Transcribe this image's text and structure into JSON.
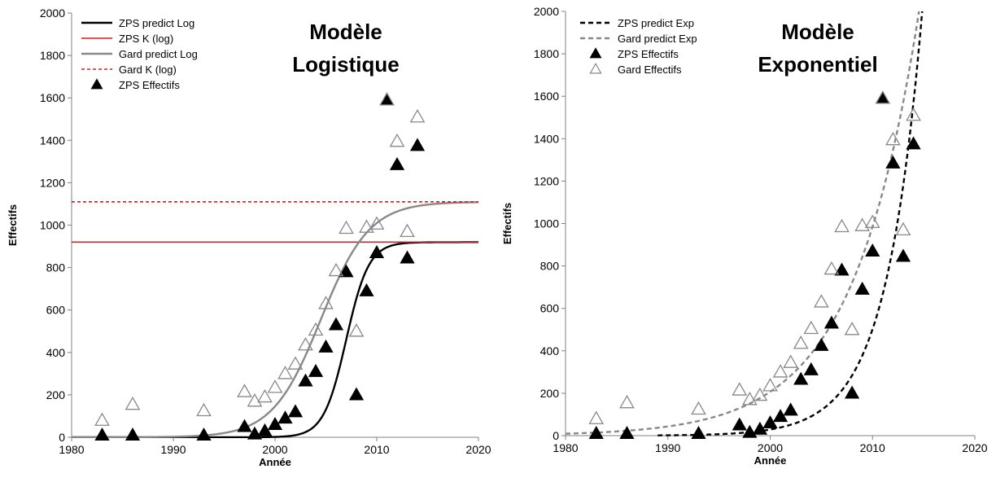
{
  "chart_data": [
    {
      "type": "scatter",
      "title_lines": [
        "Modèle",
        "Logistique"
      ],
      "xlabel": "Année",
      "ylabel": "Effectifs",
      "xlim": [
        1980,
        2020
      ],
      "ylim": [
        0,
        2000
      ],
      "xticks": [
        1980,
        1990,
        2000,
        2010,
        2020
      ],
      "yticks": [
        0,
        200,
        400,
        600,
        800,
        1000,
        1200,
        1400,
        1600,
        1800,
        2000
      ],
      "legend_position": "top-left",
      "series": [
        {
          "name": "ZPS predict Log",
          "kind": "curve",
          "model": "logistic",
          "K": 920,
          "r": 0.9,
          "t0": 2007,
          "color": "#000000",
          "dash": "solid"
        },
        {
          "name": "ZPS K (log)",
          "kind": "hline",
          "y": 920,
          "color": "#dd1c1c",
          "dash": "solid"
        },
        {
          "name": "Gard predict Log",
          "kind": "curve",
          "model": "logistic",
          "K": 1110,
          "r": 0.42,
          "t0": 2004.5,
          "color": "#888888",
          "dash": "solid"
        },
        {
          "name": "Gard K (log)",
          "kind": "hline",
          "y": 1110,
          "color": "#dd1c1c",
          "dash": "dashed"
        },
        {
          "name": "ZPS Effectifs",
          "kind": "points",
          "marker": "filled-triangle",
          "color": "#000000",
          "x": [
            1983,
            1986,
            1993,
            1997,
            1998,
            1999,
            2000,
            2001,
            2002,
            2003,
            2004,
            2005,
            2006,
            2007,
            2008,
            2009,
            2010,
            2011,
            2012,
            2013,
            2014
          ],
          "y": [
            10,
            10,
            10,
            50,
            15,
            30,
            60,
            90,
            120,
            265,
            310,
            425,
            530,
            780,
            200,
            690,
            870,
            1590,
            1285,
            845,
            1375
          ]
        },
        {
          "name": "",
          "kind": "points",
          "marker": "open-triangle",
          "color": "#888888",
          "x": [
            1983,
            1986,
            1993,
            1997,
            1998,
            1999,
            2000,
            2001,
            2002,
            2003,
            2004,
            2005,
            2006,
            2007,
            2008,
            2009,
            2010,
            2011,
            2012,
            2013,
            2014
          ],
          "y": [
            80,
            155,
            125,
            215,
            170,
            190,
            235,
            300,
            345,
            435,
            505,
            630,
            785,
            985,
            500,
            990,
            1005,
            1590,
            1395,
            970,
            1510
          ]
        }
      ]
    },
    {
      "type": "scatter",
      "title_lines": [
        "Modèle",
        "Exponentiel"
      ],
      "xlabel": "Année",
      "ylabel": "Effectifs",
      "xlim": [
        1980,
        2020
      ],
      "ylim": [
        0,
        2000
      ],
      "xticks": [
        1980,
        1990,
        2000,
        2010,
        2020
      ],
      "yticks": [
        0,
        200,
        400,
        600,
        800,
        1000,
        1200,
        1400,
        1600,
        1800,
        2000
      ],
      "legend_position": "top-left",
      "series": [
        {
          "name": "ZPS predict Exp",
          "kind": "curve",
          "model": "exponential",
          "a": 1000,
          "r": 0.285,
          "t0": 2012.42,
          "x_start": 1989,
          "color": "#000000",
          "dash": "dashed"
        },
        {
          "name": "Gard predict Exp",
          "kind": "curve",
          "model": "exponential",
          "a": 1000,
          "r": 0.156,
          "t0": 2010.1,
          "x_start": 1980,
          "color": "#888888",
          "dash": "dashed"
        },
        {
          "name": "ZPS Effectifs",
          "kind": "points",
          "marker": "filled-triangle",
          "color": "#000000",
          "x": [
            1983,
            1986,
            1993,
            1997,
            1998,
            1999,
            2000,
            2001,
            2002,
            2003,
            2004,
            2005,
            2006,
            2007,
            2008,
            2009,
            2010,
            2011,
            2012,
            2013,
            2014
          ],
          "y": [
            10,
            10,
            10,
            50,
            15,
            30,
            60,
            90,
            120,
            265,
            310,
            425,
            530,
            780,
            200,
            690,
            870,
            1590,
            1285,
            845,
            1375
          ]
        },
        {
          "name": "Gard Effectifs",
          "kind": "points",
          "marker": "open-triangle",
          "color": "#888888",
          "x": [
            1983,
            1986,
            1993,
            1997,
            1998,
            1999,
            2000,
            2001,
            2002,
            2003,
            2004,
            2005,
            2006,
            2007,
            2008,
            2009,
            2010,
            2011,
            2012,
            2013,
            2014
          ],
          "y": [
            80,
            155,
            125,
            215,
            170,
            190,
            235,
            300,
            345,
            435,
            505,
            630,
            785,
            985,
            500,
            990,
            1005,
            1590,
            1395,
            970,
            1510
          ]
        }
      ]
    }
  ]
}
